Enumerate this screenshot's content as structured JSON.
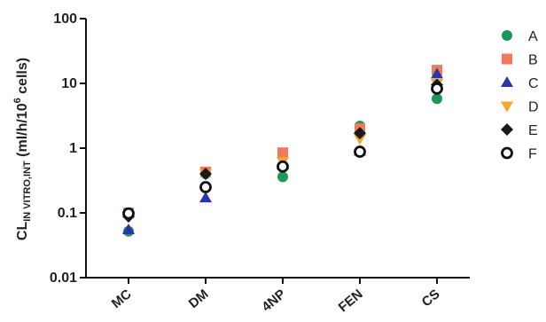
{
  "chart_data": {
    "type": "scatter",
    "y_scale": "log",
    "ylim": [
      0.01,
      100
    ],
    "yticks": [
      "0.01",
      "0.1",
      "1",
      "10",
      "100"
    ],
    "categories": [
      "MC",
      "DM",
      "4NP",
      "FEN",
      "CS"
    ],
    "ylabel": {
      "main": "CL",
      "subscript": "IN VITRO,INT",
      "unit_before_sup": " (ml/h/10",
      "superscript": "6",
      "unit_after_sup": " cells)"
    },
    "legend_position": "right",
    "series": [
      {
        "name": "A",
        "marker": "circle-filled",
        "color": "#1a9a5a",
        "values": [
          0.052,
          0.4,
          0.36,
          2.2,
          5.8
        ]
      },
      {
        "name": "B",
        "marker": "square",
        "color": "#f07b5a",
        "values": [
          0.1,
          0.43,
          0.85,
          2.0,
          16
        ]
      },
      {
        "name": "C",
        "marker": "triangle-up",
        "color": "#2b35a8",
        "values": [
          0.055,
          0.17,
          0.55,
          0.9,
          14
        ]
      },
      {
        "name": "D",
        "marker": "triangle-down",
        "color": "#f5a536",
        "values": [
          0.09,
          0.4,
          0.62,
          1.4,
          10
        ]
      },
      {
        "name": "E",
        "marker": "diamond",
        "color": "#1a1a1a",
        "values": [
          0.088,
          0.4,
          0.52,
          1.7,
          9.5
        ]
      },
      {
        "name": "F",
        "marker": "circle-open",
        "color": "#111111",
        "values": [
          0.098,
          0.25,
          0.52,
          0.88,
          8.3
        ]
      }
    ]
  }
}
